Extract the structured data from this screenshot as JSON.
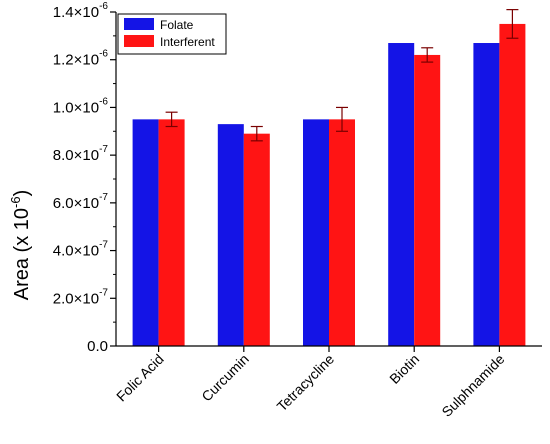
{
  "chart_data": {
    "type": "bar",
    "categories": [
      "Folic Acid",
      "Curcumin",
      "Tetracycline",
      "Biotin",
      "Sulphnamide"
    ],
    "series": [
      {
        "name": "Folate",
        "color": "#1414e6",
        "values": [
          9.5e-07,
          9.3e-07,
          9.5e-07,
          1.27e-06,
          1.27e-06
        ]
      },
      {
        "name": "Interferent",
        "color": "#ff1414",
        "values": [
          9.5e-07,
          8.9e-07,
          9.5e-07,
          1.22e-06,
          1.35e-06
        ],
        "errors": [
          3e-08,
          3e-08,
          5e-08,
          3e-08,
          6e-08
        ]
      }
    ],
    "ylabel": "Area (x 10",
    "ylabel_sup": "-6",
    "ylabel_close": ")",
    "ylim": [
      0,
      1.4e-06
    ],
    "yticks": [
      {
        "value": 0,
        "mant": "0.0",
        "exp": ""
      },
      {
        "value": 2e-07,
        "mant": "2.0×10",
        "exp": "-7"
      },
      {
        "value": 4e-07,
        "mant": "4.0×10",
        "exp": "-7"
      },
      {
        "value": 6e-07,
        "mant": "6.0×10",
        "exp": "-7"
      },
      {
        "value": 8e-07,
        "mant": "8.0×10",
        "exp": "-7"
      },
      {
        "value": 1e-06,
        "mant": "1.0×10",
        "exp": "-6"
      },
      {
        "value": 1.2e-06,
        "mant": "1.2×10",
        "exp": "-6"
      },
      {
        "value": 1.4e-06,
        "mant": "1.4×10",
        "exp": "-6"
      }
    ],
    "legend_position": "top-left",
    "error_bar_color": "#7a0000",
    "axis_color": "#000000"
  }
}
